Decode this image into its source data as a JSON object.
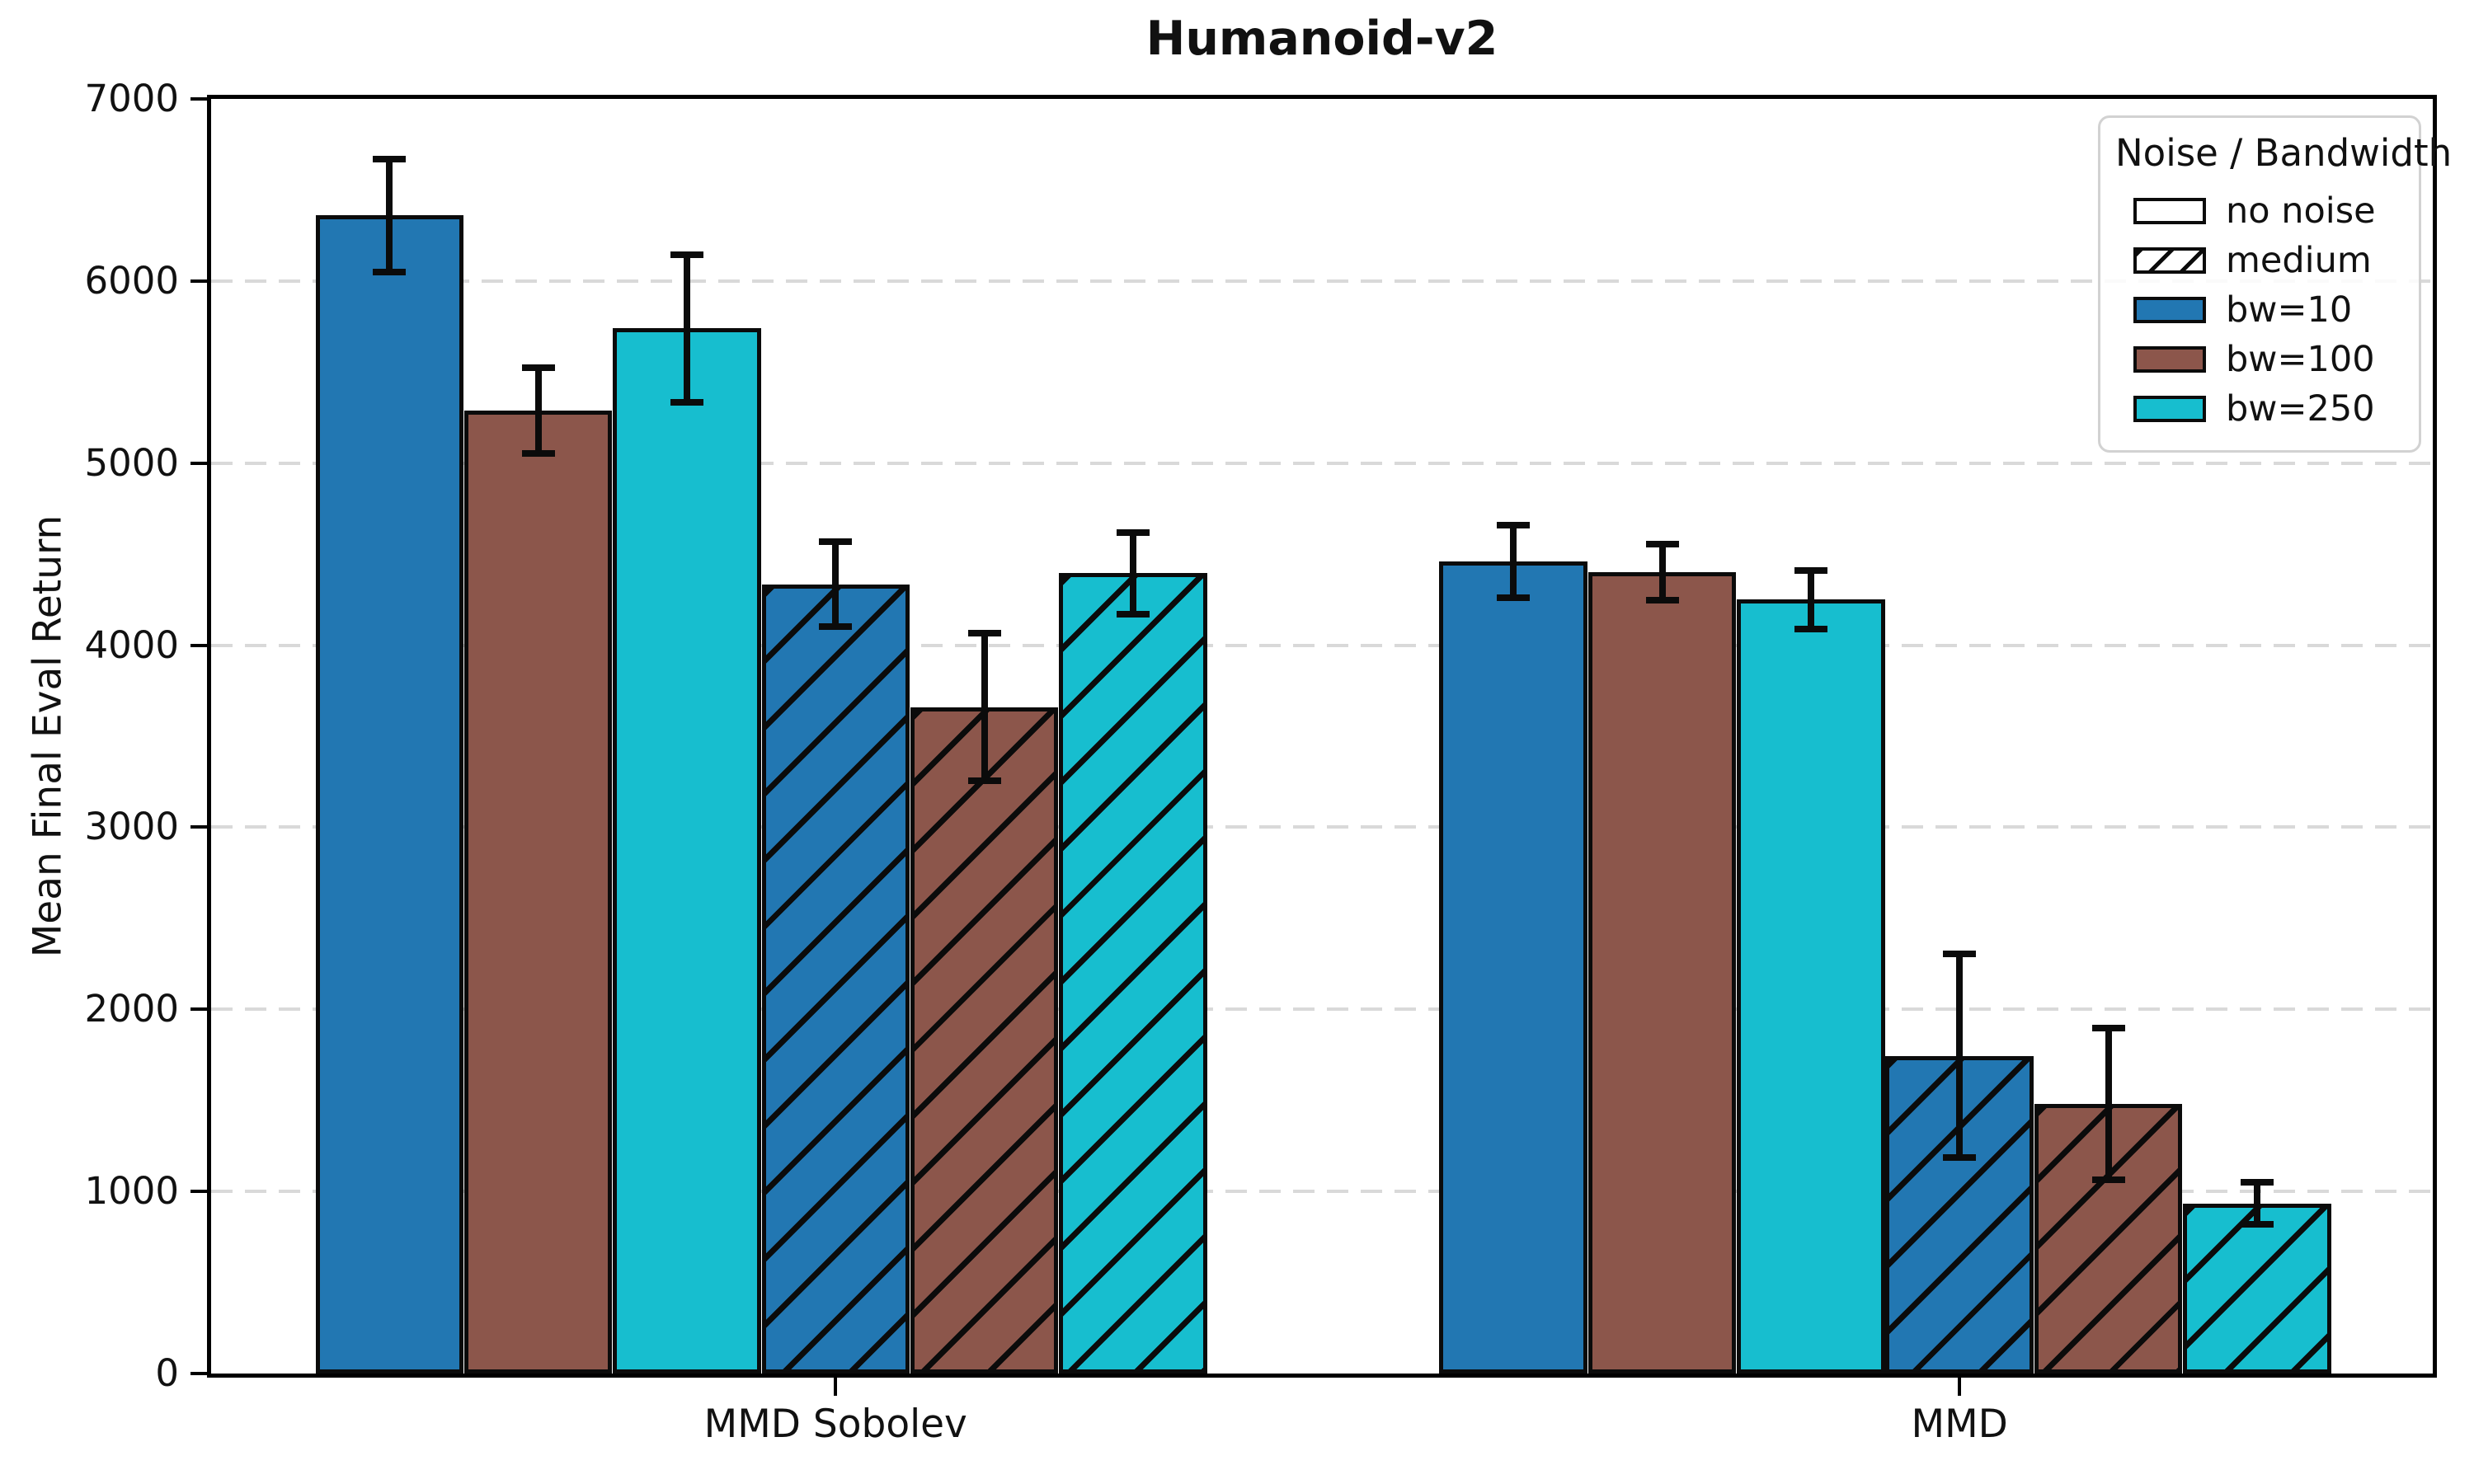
{
  "chart_data": {
    "type": "bar",
    "title": "Humanoid-v2",
    "ylabel": "Mean Final Eval Return",
    "xlabel": "",
    "ylim": [
      0,
      7000
    ],
    "ytick_step": 1000,
    "grid": "horizontal-dashed",
    "groups": [
      "MMD Sobolev",
      "MMD"
    ],
    "legend": {
      "title": "Noise / Bandwidth",
      "position": "upper-right",
      "entries": [
        {
          "label": "no noise",
          "fill": "#ffffff",
          "hatch": false
        },
        {
          "label": "medium",
          "fill": "#ffffff",
          "hatch": true
        },
        {
          "label": "bw=10",
          "fill": "#2277b2",
          "hatch": false
        },
        {
          "label": "bw=100",
          "fill": "#8c564b",
          "hatch": false
        },
        {
          "label": "bw=250",
          "fill": "#17becf",
          "hatch": false
        }
      ]
    },
    "series": [
      {
        "noise": "no noise",
        "bandwidth": "bw=10",
        "color": "#2277b2",
        "hatch": false,
        "values": [
          6360,
          4460
        ],
        "errors": [
          310,
          200
        ]
      },
      {
        "noise": "no noise",
        "bandwidth": "bw=100",
        "color": "#8c564b",
        "hatch": false,
        "values": [
          5290,
          4400
        ],
        "errors": [
          235,
          155
        ]
      },
      {
        "noise": "no noise",
        "bandwidth": "bw=250",
        "color": "#17becf",
        "hatch": false,
        "values": [
          5740,
          4250
        ],
        "errors": [
          405,
          160
        ]
      },
      {
        "noise": "medium",
        "bandwidth": "bw=10",
        "color": "#2277b2",
        "hatch": true,
        "values": [
          4335,
          1745
        ],
        "errors": [
          235,
          560
        ]
      },
      {
        "noise": "medium",
        "bandwidth": "bw=100",
        "color": "#8c564b",
        "hatch": true,
        "values": [
          3660,
          1480
        ],
        "errors": [
          405,
          415
        ]
      },
      {
        "noise": "medium",
        "bandwidth": "bw=250",
        "color": "#17becf",
        "hatch": true,
        "values": [
          4395,
          935
        ],
        "errors": [
          225,
          115
        ]
      }
    ],
    "layout_hints": {
      "group_center_frac": [
        0.2811,
        0.787
      ],
      "bar_step_frac": 0.06694,
      "bar_width_frac": 0.0666,
      "center_bar_index": 3,
      "axis_color": "#000000",
      "grid_color": "#d9d9d9"
    }
  }
}
